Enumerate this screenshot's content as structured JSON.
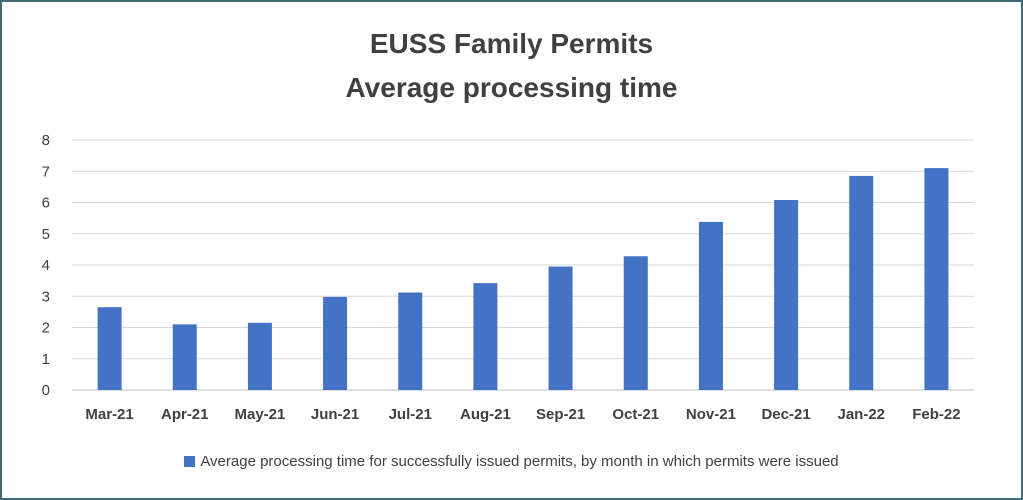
{
  "chart_data": {
    "type": "bar",
    "title_lines": [
      "EUSS Family Permits",
      "Average processing  time"
    ],
    "categories": [
      "Mar-21",
      "Apr-21",
      "May-21",
      "Jun-21",
      "Jul-21",
      "Aug-21",
      "Sep-21",
      "Oct-21",
      "Nov-21",
      "Dec-21",
      "Jan-22",
      "Feb-22"
    ],
    "series": [
      {
        "name": "Average processing time for successfully issued permits, by month in which permits were issued",
        "values": [
          2.65,
          2.1,
          2.15,
          2.98,
          3.12,
          3.42,
          3.95,
          4.28,
          5.38,
          6.08,
          6.85,
          7.1
        ]
      }
    ],
    "ylim": [
      0,
      8
    ],
    "yticks": [
      "0",
      "1",
      "2",
      "3",
      "4",
      "5",
      "6",
      "7",
      "8"
    ],
    "grid": true,
    "legend_position": "bottom",
    "bar_color": "#4472c4"
  }
}
